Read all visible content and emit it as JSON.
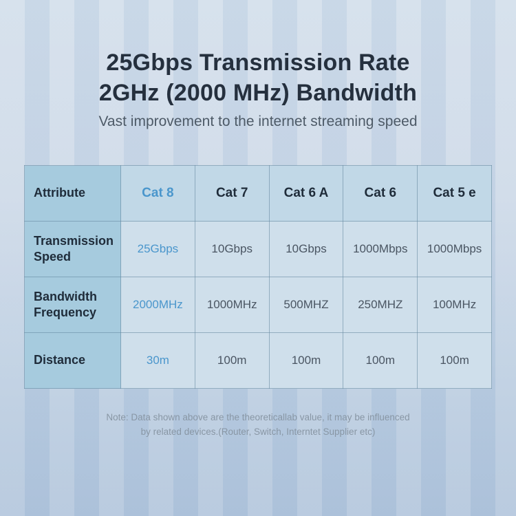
{
  "header": {
    "title_line1": "25Gbps Transmission Rate",
    "title_line2": "2GHz (2000 MHz) Bandwidth",
    "subtitle": "Vast improvement to the internet streaming speed"
  },
  "chart_data": {
    "type": "table",
    "title": "25Gbps Transmission Rate 2GHz (2000 MHz) Bandwidth",
    "columns": [
      "Attribute",
      "Cat 8",
      "Cat 7",
      "Cat 6 A",
      "Cat 6",
      "Cat 5 e"
    ],
    "rows": [
      [
        "Transmission Speed",
        "25Gbps",
        "10Gbps",
        "10Gbps",
        "1000Mbps",
        "1000Mbps"
      ],
      [
        "Bandwidth Frequency",
        "2000MHz",
        "1000MHz",
        "500MHZ",
        "250MHZ",
        "100MHz"
      ],
      [
        "Distance",
        "30m",
        "100m",
        "100m",
        "100m",
        "100m"
      ]
    ],
    "highlighted_column": "Cat 8"
  },
  "footnote": {
    "line1": "Note: Data shown above are the theoreticallab value, it may be influenced",
    "line2": "by related devices.(Router, Switch, Interntet Supplier etc)"
  },
  "colors": {
    "accent_blue": "#4a96cc",
    "title_text": "#25303e",
    "body_text": "#4a5562",
    "note_text": "#8896a4",
    "header_cell_bg": "#c1d8e7",
    "label_column_bg": "#a6cbde",
    "body_cell_bg": "#cfdfeb",
    "background_top": "#d3dfeb",
    "background_bottom": "#b2c5dc"
  }
}
